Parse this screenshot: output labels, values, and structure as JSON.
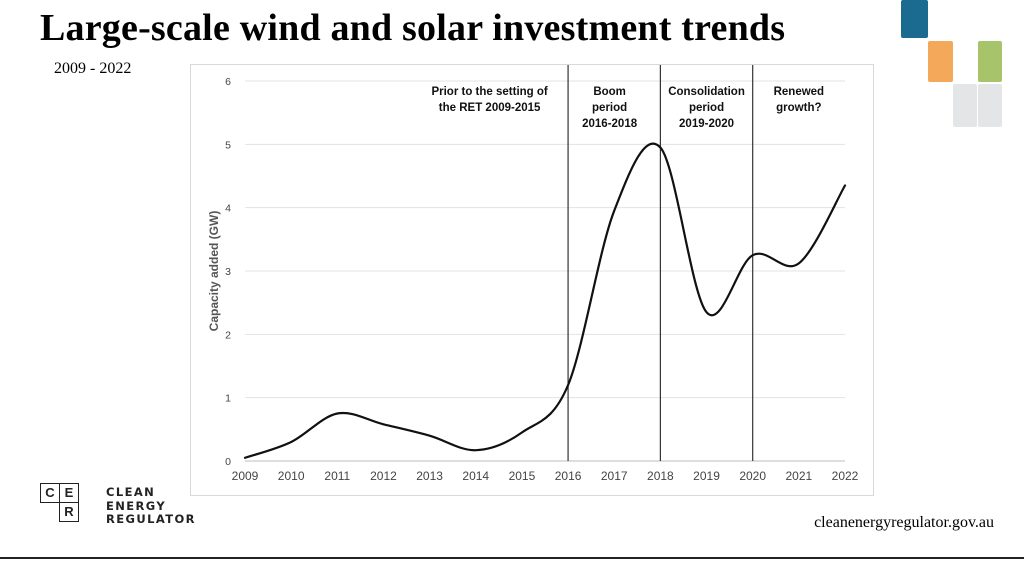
{
  "slide": {
    "title": "Large-scale wind and solar investment trends",
    "subtitle": "2009 - 2022",
    "website": "cleanenergyregulator.gov.au"
  },
  "logo": {
    "letters": [
      "C",
      "E",
      "R"
    ],
    "lines": [
      "CLEAN",
      "ENERGY",
      "REGULATOR"
    ]
  },
  "decor_colors": {
    "blue": "#1b6a8f",
    "orange": "#f4a95a",
    "green": "#a8c46a",
    "grey": "#e4e5e7"
  },
  "chart_data": {
    "type": "line",
    "x": [
      2009,
      2010,
      2011,
      2012,
      2013,
      2014,
      2015,
      2016,
      2017,
      2018,
      2019,
      2020,
      2021,
      2022
    ],
    "y": [
      0.05,
      0.3,
      0.75,
      0.58,
      0.4,
      0.17,
      0.45,
      1.2,
      3.95,
      4.95,
      2.35,
      3.25,
      3.12,
      4.35
    ],
    "ylabel": "Capacity added (GW)",
    "xlabel": "",
    "ylim": [
      0,
      6
    ],
    "yticks": [
      0,
      1,
      2,
      3,
      4,
      5,
      6
    ],
    "grid": true,
    "line_color": "#111111",
    "dividers": [
      2016,
      2018,
      2020
    ],
    "annotations": [
      {
        "lines": [
          "Prior to the setting of",
          "the RET 2009-2015"
        ],
        "x_center": 2014.3
      },
      {
        "lines": [
          "Boom",
          "period",
          "2016-2018"
        ],
        "x_center": 2016.9
      },
      {
        "lines": [
          "Consolidation",
          "period",
          "2019-2020"
        ],
        "x_center": 2019.0
      },
      {
        "lines": [
          "Renewed",
          "growth?"
        ],
        "x_center": 2021.0
      }
    ]
  }
}
